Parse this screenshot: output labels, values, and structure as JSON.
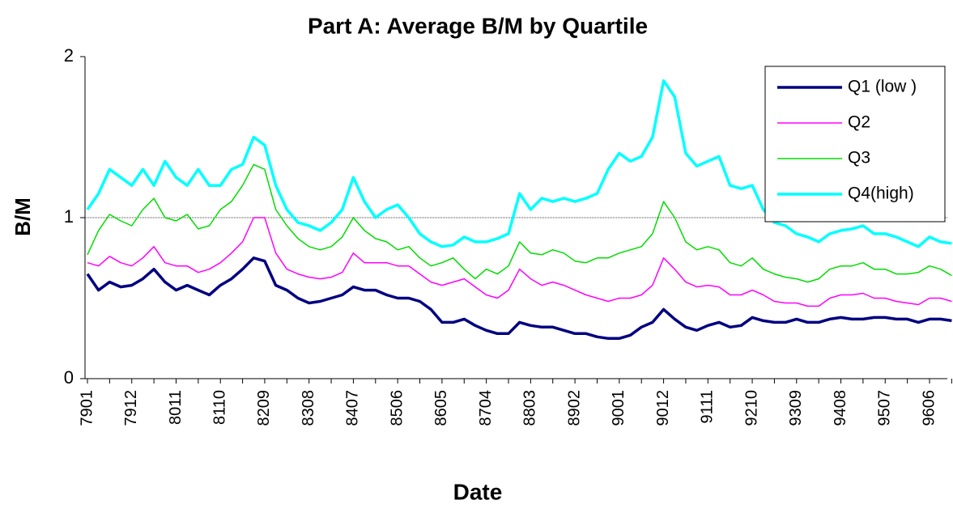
{
  "chart_data": {
    "type": "line",
    "title": "Part A: Average B/M by Quartile",
    "x_label": "Date",
    "y_label": "B/M",
    "categories": [
      "7901",
      null,
      null,
      null,
      "7912",
      null,
      null,
      null,
      "8011",
      null,
      null,
      null,
      "8110",
      null,
      null,
      null,
      "8209",
      null,
      null,
      null,
      "8308",
      null,
      null,
      null,
      "8407",
      null,
      null,
      null,
      "8506",
      null,
      null,
      null,
      "8605",
      null,
      null,
      null,
      "8704",
      null,
      null,
      null,
      "8803",
      null,
      null,
      null,
      "8902",
      null,
      null,
      null,
      "9001",
      null,
      null,
      null,
      "9012",
      null,
      null,
      null,
      "9111",
      null,
      null,
      null,
      "9210",
      null,
      null,
      null,
      "9309",
      null,
      null,
      null,
      "9408",
      null,
      null,
      null,
      "9507",
      null,
      null,
      null,
      "9606",
      null,
      null
    ],
    "ylim": [
      0,
      2
    ],
    "yticks": [
      0,
      1,
      2
    ],
    "grid": true,
    "legend": "upper right",
    "series": [
      {
        "name": "Q1 (low )",
        "color": "#000080",
        "line_width": 3.5,
        "values": [
          0.65,
          0.55,
          0.6,
          0.57,
          0.58,
          0.62,
          0.68,
          0.6,
          0.55,
          0.58,
          0.55,
          0.52,
          0.58,
          0.62,
          0.68,
          0.75,
          0.73,
          0.58,
          0.55,
          0.5,
          0.47,
          0.48,
          0.5,
          0.52,
          0.57,
          0.55,
          0.55,
          0.52,
          0.5,
          0.5,
          0.48,
          0.43,
          0.35,
          0.35,
          0.37,
          0.33,
          0.3,
          0.28,
          0.28,
          0.35,
          0.33,
          0.32,
          0.32,
          0.3,
          0.28,
          0.28,
          0.26,
          0.25,
          0.25,
          0.27,
          0.32,
          0.35,
          0.43,
          0.37,
          0.32,
          0.3,
          0.33,
          0.35,
          0.32,
          0.33,
          0.38,
          0.36,
          0.35,
          0.35,
          0.37,
          0.35,
          0.35,
          0.37,
          0.38,
          0.37,
          0.37,
          0.38,
          0.38,
          0.37,
          0.37,
          0.35,
          0.37,
          0.37,
          0.36
        ]
      },
      {
        "name": "Q2",
        "color": "#ff00ff",
        "line_width": 1.5,
        "values": [
          0.72,
          0.7,
          0.76,
          0.72,
          0.7,
          0.75,
          0.82,
          0.72,
          0.7,
          0.7,
          0.66,
          0.68,
          0.72,
          0.78,
          0.85,
          1.0,
          1.0,
          0.78,
          0.68,
          0.65,
          0.63,
          0.62,
          0.63,
          0.66,
          0.78,
          0.72,
          0.72,
          0.72,
          0.7,
          0.7,
          0.65,
          0.6,
          0.58,
          0.6,
          0.62,
          0.57,
          0.52,
          0.5,
          0.55,
          0.68,
          0.62,
          0.58,
          0.6,
          0.58,
          0.55,
          0.52,
          0.5,
          0.48,
          0.5,
          0.5,
          0.52,
          0.58,
          0.75,
          0.68,
          0.6,
          0.57,
          0.58,
          0.57,
          0.52,
          0.52,
          0.55,
          0.52,
          0.48,
          0.47,
          0.47,
          0.45,
          0.45,
          0.5,
          0.52,
          0.52,
          0.53,
          0.5,
          0.5,
          0.48,
          0.47,
          0.46,
          0.5,
          0.5,
          0.48
        ]
      },
      {
        "name": "Q3",
        "color": "#00dd00",
        "line_width": 1.5,
        "values": [
          0.77,
          0.92,
          1.02,
          0.98,
          0.95,
          1.05,
          1.12,
          1.0,
          0.98,
          1.02,
          0.93,
          0.95,
          1.05,
          1.1,
          1.2,
          1.33,
          1.3,
          1.05,
          0.95,
          0.87,
          0.82,
          0.8,
          0.82,
          0.88,
          1.0,
          0.92,
          0.87,
          0.85,
          0.8,
          0.82,
          0.75,
          0.7,
          0.72,
          0.75,
          0.68,
          0.62,
          0.68,
          0.65,
          0.7,
          0.85,
          0.78,
          0.77,
          0.8,
          0.78,
          0.73,
          0.72,
          0.75,
          0.75,
          0.78,
          0.8,
          0.82,
          0.9,
          1.1,
          1.0,
          0.85,
          0.8,
          0.82,
          0.8,
          0.72,
          0.7,
          0.75,
          0.68,
          0.65,
          0.63,
          0.62,
          0.6,
          0.62,
          0.68,
          0.7,
          0.7,
          0.72,
          0.68,
          0.68,
          0.65,
          0.65,
          0.66,
          0.7,
          0.68,
          0.64
        ]
      },
      {
        "name": "Q4(high)",
        "color": "#00ffff",
        "line_width": 3.5,
        "values": [
          1.05,
          1.15,
          1.3,
          1.25,
          1.2,
          1.3,
          1.2,
          1.35,
          1.25,
          1.2,
          1.3,
          1.2,
          1.2,
          1.3,
          1.33,
          1.5,
          1.45,
          1.2,
          1.05,
          0.97,
          0.95,
          0.92,
          0.97,
          1.05,
          1.25,
          1.1,
          1.0,
          1.05,
          1.08,
          1.0,
          0.9,
          0.85,
          0.82,
          0.83,
          0.88,
          0.85,
          0.85,
          0.87,
          0.9,
          1.15,
          1.05,
          1.12,
          1.1,
          1.12,
          1.1,
          1.12,
          1.15,
          1.3,
          1.4,
          1.35,
          1.38,
          1.5,
          1.85,
          1.75,
          1.4,
          1.32,
          1.35,
          1.38,
          1.2,
          1.18,
          1.2,
          1.05,
          0.97,
          0.95,
          0.9,
          0.88,
          0.85,
          0.9,
          0.92,
          0.93,
          0.95,
          0.9,
          0.9,
          0.88,
          0.85,
          0.82,
          0.88,
          0.85,
          0.84
        ]
      }
    ]
  }
}
